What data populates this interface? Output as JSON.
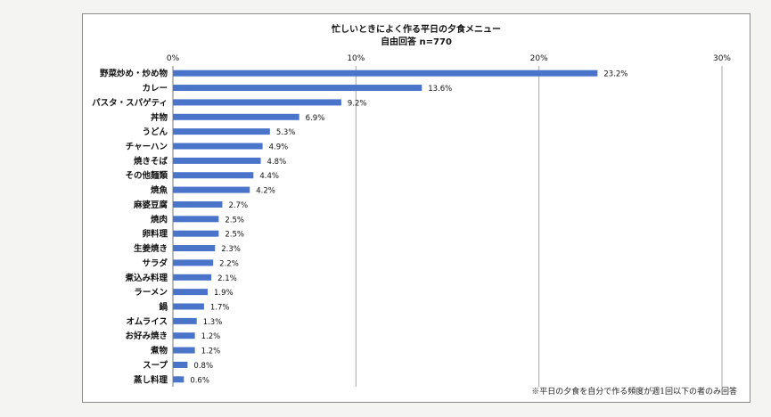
{
  "chart_data": {
    "type": "bar",
    "orientation": "horizontal",
    "title": "忙しいときによく作る平日の夕食メニュー",
    "subtitle": "自由回答 n=770",
    "note": "※平日の夕食を自分で作る頻度が週1回以下の者のみ回答",
    "x_ticks": [
      "0%",
      "10%",
      "20%",
      "30%"
    ],
    "xlim": [
      0,
      30
    ],
    "grid": "vertical",
    "bar_color": "#4a74c9",
    "categories": [
      "野菜炒め・炒め物",
      "カレー",
      "パスタ・スパゲティ",
      "丼物",
      "うどん",
      "チャーハン",
      "焼きそば",
      "その他麺類",
      "焼魚",
      "麻婆豆腐",
      "焼肉",
      "卵料理",
      "生姜焼き",
      "サラダ",
      "煮込み料理",
      "ラーメン",
      "鍋",
      "オムライス",
      "お好み焼き",
      "煮物",
      "スープ",
      "蒸し料理"
    ],
    "values": [
      23.2,
      13.6,
      9.2,
      6.9,
      5.3,
      4.9,
      4.8,
      4.4,
      4.2,
      2.7,
      2.5,
      2.5,
      2.3,
      2.2,
      2.1,
      1.9,
      1.7,
      1.3,
      1.2,
      1.2,
      0.8,
      0.6
    ],
    "value_labels": [
      "23.2%",
      "13.6%",
      "9.2%",
      "6.9%",
      "5.3%",
      "4.9%",
      "4.8%",
      "4.4%",
      "4.2%",
      "2.7%",
      "2.5%",
      "2.5%",
      "2.3%",
      "2.2%",
      "2.1%",
      "1.9%",
      "1.7%",
      "1.3%",
      "1.2%",
      "1.2%",
      "0.8%",
      "0.6%"
    ]
  }
}
